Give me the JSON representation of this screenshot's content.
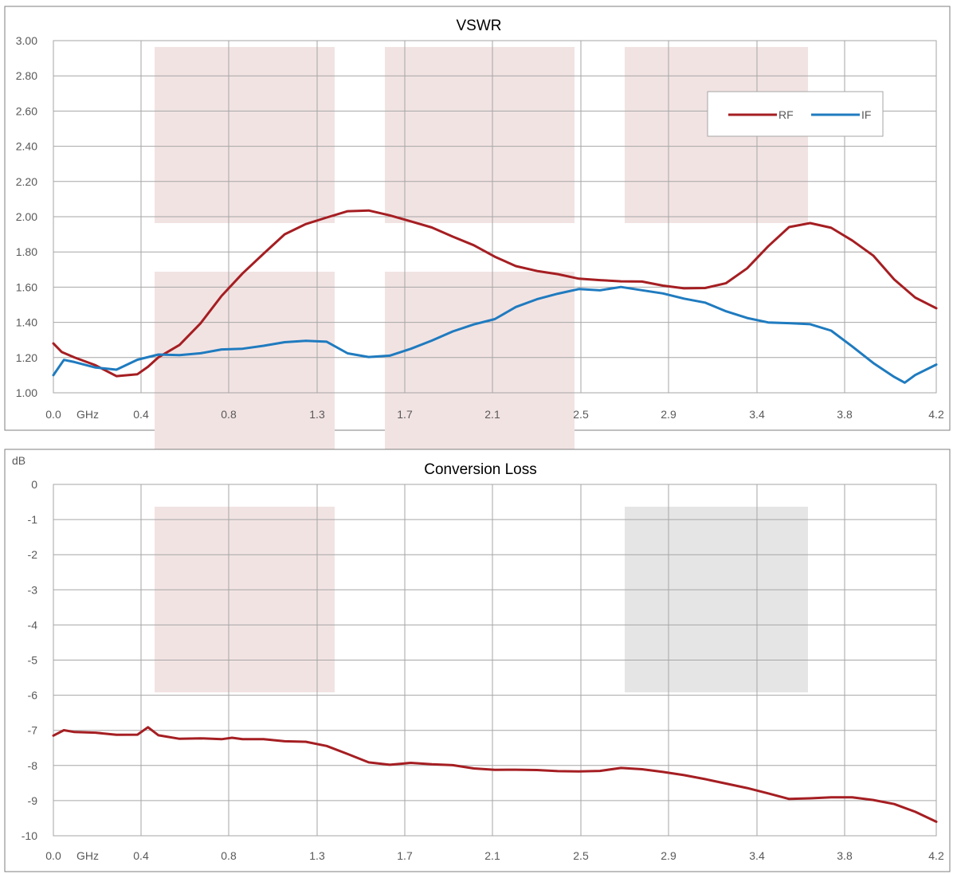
{
  "colors": {
    "rf": "#a51e22",
    "if": "#1f7bbf",
    "band_pink": "#f2e3e3",
    "band_gray": "#e5e5e5",
    "grid": "#a6a6a6",
    "frame": "#7f7f7f"
  },
  "chart_data": [
    {
      "type": "line",
      "title": "VSWR",
      "ylabel": "",
      "x_unit_label": "GHz",
      "x_tick_labels": [
        "0.0",
        "0.4",
        "0.8",
        "1.3",
        "1.7",
        "2.1",
        "2.5",
        "2.9",
        "3.4",
        "3.8",
        "4.2"
      ],
      "y_tick_labels": [
        "3.00",
        "2.80",
        "2.60",
        "2.40",
        "2.20",
        "2.00",
        "1.80",
        "1.60",
        "1.40",
        "1.20",
        "1.00"
      ],
      "xlim": [
        0,
        4.2
      ],
      "ylim": [
        1.0,
        3.0
      ],
      "grid": true,
      "legend": "top-right",
      "series": [
        {
          "name": "RF",
          "color_key": "rf",
          "x": [
            0.0,
            0.04,
            0.1,
            0.2,
            0.3,
            0.4,
            0.45,
            0.5,
            0.6,
            0.7,
            0.8,
            0.9,
            1.0,
            1.1,
            1.2,
            1.3,
            1.4,
            1.5,
            1.6,
            1.7,
            1.8,
            1.9,
            2.0,
            2.1,
            2.2,
            2.3,
            2.4,
            2.5,
            2.6,
            2.7,
            2.8,
            2.9,
            3.0,
            3.1,
            3.2,
            3.3,
            3.4,
            3.5,
            3.6,
            3.7,
            3.8,
            3.9,
            4.0,
            4.1,
            4.2
          ],
          "y": [
            1.28,
            1.22,
            1.2,
            1.15,
            1.09,
            1.1,
            1.14,
            1.2,
            1.28,
            1.4,
            1.55,
            1.68,
            1.8,
            1.9,
            1.96,
            1.99,
            2.02,
            2.03,
            2.0,
            1.97,
            1.93,
            1.88,
            1.83,
            1.78,
            1.73,
            1.7,
            1.68,
            1.66,
            1.65,
            1.64,
            1.62,
            1.6,
            1.59,
            1.59,
            1.62,
            1.7,
            1.82,
            1.93,
            1.97,
            1.94,
            1.87,
            1.78,
            1.65,
            1.55,
            1.48
          ]
        },
        {
          "name": "IF",
          "color_key": "if",
          "x": [
            0.0,
            0.05,
            0.1,
            0.2,
            0.3,
            0.4,
            0.5,
            0.6,
            0.7,
            0.8,
            0.9,
            1.0,
            1.1,
            1.2,
            1.3,
            1.4,
            1.5,
            1.6,
            1.7,
            1.8,
            1.9,
            2.0,
            2.1,
            2.2,
            2.3,
            2.4,
            2.5,
            2.6,
            2.7,
            2.8,
            2.9,
            3.0,
            3.1,
            3.2,
            3.3,
            3.4,
            3.5,
            3.6,
            3.7,
            3.8,
            3.9,
            4.0,
            4.05,
            4.1,
            4.2
          ],
          "y": [
            1.1,
            1.19,
            1.18,
            1.15,
            1.14,
            1.19,
            1.22,
            1.22,
            1.23,
            1.24,
            1.25,
            1.26,
            1.28,
            1.29,
            1.28,
            1.22,
            1.21,
            1.22,
            1.25,
            1.3,
            1.35,
            1.39,
            1.43,
            1.48,
            1.52,
            1.56,
            1.58,
            1.58,
            1.59,
            1.58,
            1.56,
            1.54,
            1.52,
            1.47,
            1.43,
            1.41,
            1.4,
            1.39,
            1.35,
            1.26,
            1.16,
            1.08,
            1.05,
            1.1,
            1.16
          ]
        }
      ]
    },
    {
      "type": "line",
      "title": "Conversion Loss",
      "ylabel": "dB",
      "x_unit_label": "GHz",
      "x_tick_labels": [
        "0.0",
        "0.4",
        "0.8",
        "1.3",
        "1.7",
        "2.1",
        "2.5",
        "2.9",
        "3.4",
        "3.8",
        "4.2"
      ],
      "y_tick_labels": [
        "0",
        "-1",
        "-2",
        "-3",
        "-4",
        "-5",
        "-6",
        "-7",
        "-8",
        "-9",
        "-10"
      ],
      "xlim": [
        0,
        4.2
      ],
      "ylim": [
        -10,
        0
      ],
      "grid": true,
      "series": [
        {
          "color_key": "rf",
          "x": [
            0.0,
            0.05,
            0.1,
            0.2,
            0.3,
            0.4,
            0.45,
            0.5,
            0.6,
            0.7,
            0.8,
            0.85,
            0.9,
            1.0,
            1.1,
            1.2,
            1.3,
            1.4,
            1.5,
            1.6,
            1.7,
            1.8,
            1.9,
            2.0,
            2.1,
            2.2,
            2.3,
            2.4,
            2.5,
            2.6,
            2.7,
            2.8,
            2.9,
            3.0,
            3.1,
            3.2,
            3.3,
            3.4,
            3.5,
            3.6,
            3.7,
            3.8,
            3.9,
            4.0,
            4.1,
            4.2
          ],
          "y": [
            -7.15,
            -7.05,
            -7.05,
            -7.1,
            -7.15,
            -7.15,
            -6.95,
            -7.15,
            -7.2,
            -7.2,
            -7.25,
            -7.2,
            -7.2,
            -7.25,
            -7.3,
            -7.35,
            -7.5,
            -7.7,
            -7.95,
            -8.0,
            -7.97,
            -8.0,
            -8.03,
            -8.05,
            -8.07,
            -8.08,
            -8.1,
            -8.1,
            -8.12,
            -8.12,
            -8.13,
            -8.15,
            -8.2,
            -8.3,
            -8.4,
            -8.55,
            -8.7,
            -8.85,
            -8.92,
            -8.92,
            -8.88,
            -8.9,
            -8.95,
            -9.05,
            -9.3,
            -9.6
          ]
        }
      ]
    }
  ]
}
